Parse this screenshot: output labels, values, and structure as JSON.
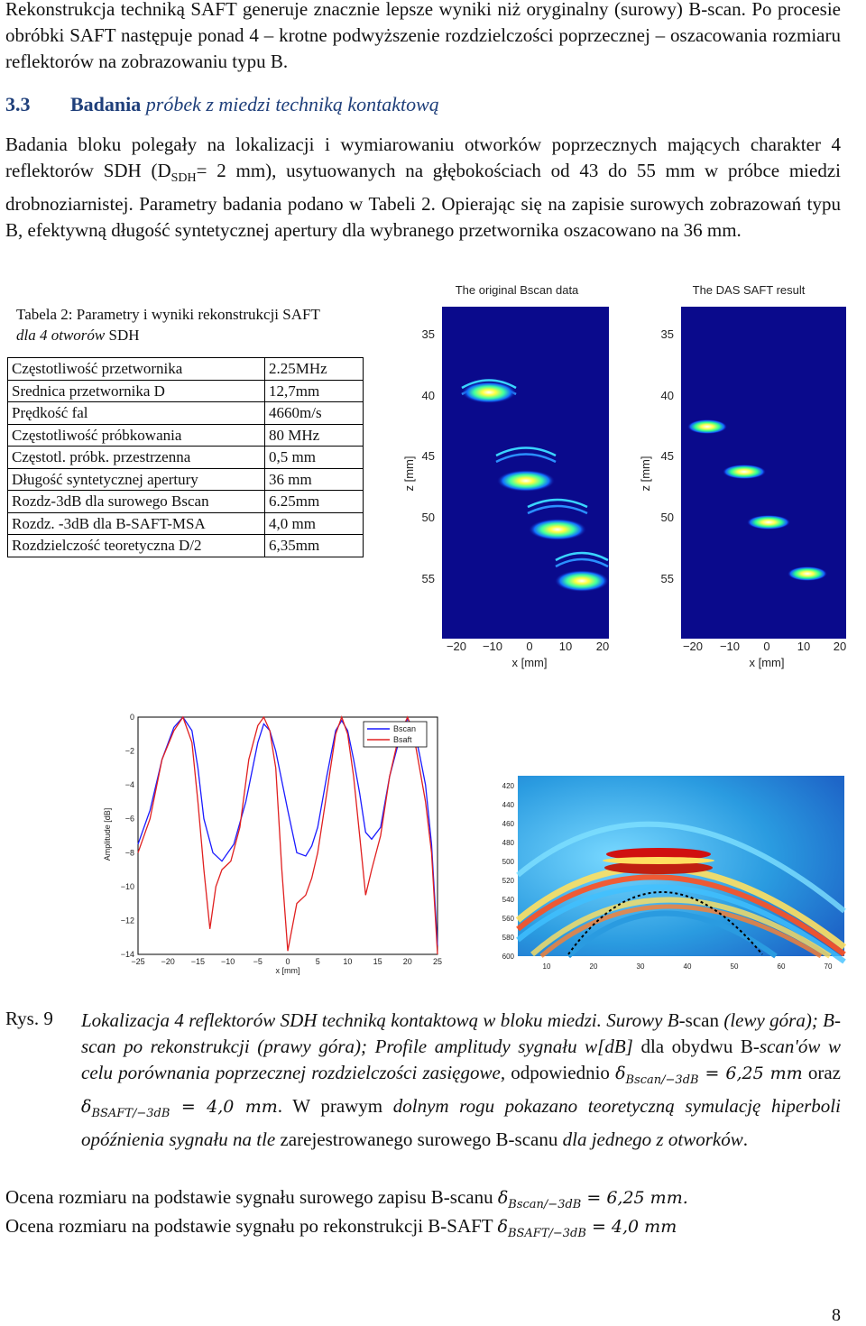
{
  "intro_paragraph": "Rekonstrukcja techniką SAFT generuje znacznie lepsze wyniki niż oryginalny (surowy) B-scan. Po procesie obróbki SAFT następuje ponad 4 – krotne podwyższenie rozdzielczości poprzecznej – oszacowania rozmiaru reflektorów na zobrazowaniu typu B.",
  "section": {
    "number": "3.3",
    "title_plain": "Badania",
    "title_italic": "próbek z miedzi techniką kontaktową"
  },
  "body_paragraph": {
    "part1": "Badania bloku polegały na lokalizacji i wymiarowaniu otworków poprzecznych mających charakter 4 reflektorów SDH (D",
    "subscript": "SDH",
    "part2": "= 2 mm), usytuowanych na głębokościach od 43 do 55 mm w próbce miedzi drobnoziarnistej. Parametry badania podano w Tabeli 2. Opierając się na zapisie surowych zobrazowań typu B, efektywną długość syntetycznej apertury dla wybranego przetwornika oszacowano na 36 mm."
  },
  "table_caption": {
    "line1": "Tabela 2: Parametry i wyniki rekonstrukcji SAFT",
    "line2_italic": "dla 4 otworów",
    "line2_plain": " SDH"
  },
  "table_rows": [
    [
      "Częstotliwość przetwornika",
      "2.25MHz"
    ],
    [
      "Srednica przetwornika D",
      "12,7mm"
    ],
    [
      "Prędkość fal",
      "4660m/s"
    ],
    [
      "Częstotliwość próbkowania",
      "80 MHz"
    ],
    [
      "Częstotl.  próbk. przestrzenna",
      "0,5 mm"
    ],
    [
      "Długość syntetycznej apertury",
      "36 mm"
    ],
    [
      "Rozdz-3dB dla surowego Bscan",
      "6.25mm"
    ],
    [
      "Rozdz. -3dB dla B-SAFT-MSA",
      "4,0 mm"
    ],
    [
      "Rozdzielczość teoretyczna D/2",
      "6,35mm"
    ]
  ],
  "bscan_original": {
    "title": "The original Bscan data",
    "ylabel": "z [mm]",
    "xlabel": "x [mm]",
    "yticks": [
      "35",
      "40",
      "45",
      "50",
      "55"
    ],
    "xticks": [
      "−20",
      "−10",
      "0",
      "10",
      "20"
    ]
  },
  "bscan_saft": {
    "title": "The DAS SAFT result",
    "ylabel": "z [mm]",
    "xlabel": "x [mm]",
    "yticks": [
      "35",
      "40",
      "45",
      "50",
      "55"
    ],
    "xticks": [
      "−20",
      "−10",
      "0",
      "10",
      "20"
    ]
  },
  "chart_data": {
    "type": "line",
    "title": "",
    "xlabel": "x [mm]",
    "ylabel": "Amplitude [dB]",
    "xlim": [
      -25,
      25
    ],
    "ylim": [
      -14,
      0
    ],
    "xticks": [
      "−25",
      "−20",
      "−15",
      "−10",
      "−5",
      "0",
      "5",
      "10",
      "15",
      "20",
      "25"
    ],
    "yticks": [
      "0",
      "−2",
      "−4",
      "−6",
      "−8",
      "−10",
      "−12",
      "−14"
    ],
    "legend_position": "top-right",
    "series": [
      {
        "name": "Bscan",
        "color": "#1a1aff",
        "x": [
          -25,
          -23,
          -21,
          -19,
          -17.5,
          -16,
          -15,
          -14,
          -12.5,
          -11,
          -10,
          -9,
          -7,
          -5,
          -4,
          -3,
          -2,
          0,
          1.5,
          3,
          4,
          5,
          6.5,
          8,
          9,
          10,
          11,
          12,
          13,
          14,
          15.5,
          17,
          18.5,
          20,
          21,
          22,
          23,
          24,
          25
        ],
        "values": [
          -7.5,
          -5.5,
          -2.5,
          -0.6,
          0,
          -0.8,
          -3,
          -6,
          -8,
          -8.5,
          -8,
          -7.5,
          -5,
          -1.5,
          -0.4,
          -0.8,
          -2,
          -5.5,
          -8,
          -8.2,
          -7.6,
          -6.5,
          -3.5,
          -0.8,
          -0.2,
          -0.8,
          -2.5,
          -4.5,
          -6.8,
          -7.2,
          -6.5,
          -3.5,
          -1.5,
          -0.1,
          -0.6,
          -2.2,
          -4,
          -7.5,
          -13.5
        ]
      },
      {
        "name": "Bsaft",
        "color": "#e02020",
        "x": [
          -25,
          -23,
          -21,
          -19,
          -17.5,
          -16,
          -15,
          -14,
          -13,
          -12,
          -11,
          -9.5,
          -8,
          -6.5,
          -5,
          -4,
          -3,
          -2,
          -1,
          0,
          1.5,
          3,
          4,
          5,
          6.5,
          8,
          9,
          10,
          11,
          12,
          13,
          14,
          15.5,
          17,
          18.5,
          20,
          21,
          22,
          23,
          24,
          25
        ],
        "values": [
          -8,
          -6,
          -2.5,
          -0.8,
          0,
          -1.5,
          -5,
          -9,
          -12.5,
          -10,
          -9,
          -8.5,
          -6.5,
          -2.5,
          -0.5,
          0,
          -0.8,
          -3,
          -9,
          -13.8,
          -11,
          -10.5,
          -9.5,
          -8,
          -4.5,
          -1,
          0,
          -1,
          -3.5,
          -7,
          -10.5,
          -9,
          -7,
          -3.5,
          -1.2,
          0,
          -1,
          -3,
          -5,
          -8,
          -14
        ]
      }
    ]
  },
  "simulation_plot": {
    "yticks": [
      "420",
      "440",
      "460",
      "480",
      "500",
      "520",
      "540",
      "560",
      "580",
      "600"
    ],
    "xticks": [
      "10",
      "20",
      "30",
      "40",
      "50",
      "60",
      "70"
    ]
  },
  "figure_label": "Rys. 9",
  "caption": {
    "s1": "Lokalizacja 4 reflektorów SDH techniką kontaktową w bloku miedzi. Surowy B-",
    "s2": "scan",
    "s3": " (lewy góra); B-scan po rekonstrukcji (prawy góra); Profile amplitudy sygnału w[dB] ",
    "s4": "dla obydwu B-",
    "s5": "scan'ów w celu porównania poprzecznej rozdzielczości zasięgowe, ",
    "s6": "odpowiednio",
    "f1": "δ",
    "f1sub": "Bscan/−3dB",
    "f1val": " = 6,25 mm",
    "s7": " oraz ",
    "f2": "δ",
    "f2sub": "BSAFT/−3dB",
    "f2val": " = 4,0 mm",
    "s8": ". W prawym",
    "s9": " dolnym rogu pokazano teoretyczną symulację hiperboli opóźnienia sygnału na tle ",
    "s10": "zarejestrowanego surowego B-scanu",
    "s11": " dla jednego z otworków",
    "s12": "."
  },
  "conclusion": {
    "line1_text": "Ocena rozmiaru na podstawie sygnału surowego zapisu B-scanu ",
    "line1_sym": "δ",
    "line1_sub": "Bscan/−3dB",
    "line1_val": " = 6,25 mm.",
    "line2_text": "Ocena rozmiaru na podstawie sygnału po rekonstrukcji B-SAFT ",
    "line2_sym": "δ",
    "line2_sub": "BSAFT/−3dB",
    "line2_val": " = 4,0 mm"
  },
  "page_number": "8"
}
